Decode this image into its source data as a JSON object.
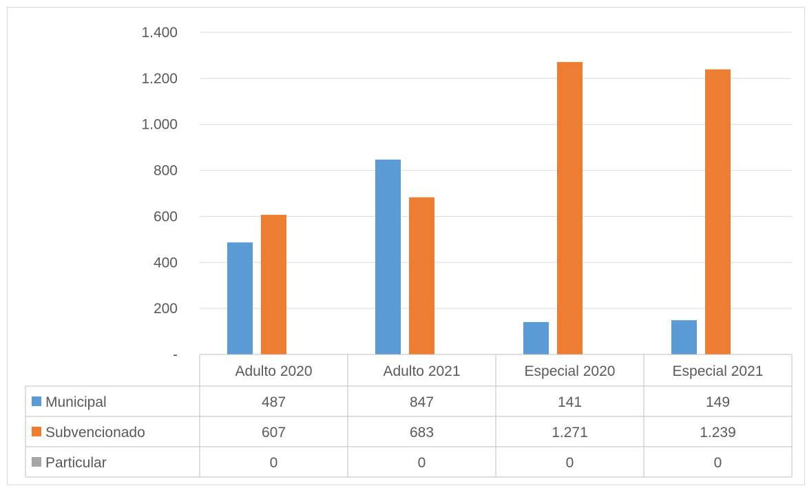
{
  "chart_data": {
    "type": "bar",
    "categories": [
      "Adulto 2020",
      "Adulto 2021",
      "Especial 2020",
      "Especial 2021"
    ],
    "series": [
      {
        "name": "Municipal",
        "values": [
          487,
          847,
          141,
          149
        ],
        "labels": [
          "487",
          "847",
          "141",
          "149"
        ],
        "color": "#5b9bd5"
      },
      {
        "name": "Subvencionado",
        "values": [
          607,
          683,
          1271,
          1239
        ],
        "labels": [
          "607",
          "683",
          "1.271",
          "1.239"
        ],
        "color": "#ed7d31"
      },
      {
        "name": "Particular",
        "values": [
          0,
          0,
          0,
          0
        ],
        "labels": [
          "0",
          "0",
          "0",
          "0"
        ],
        "color": "#a5a5a5"
      }
    ],
    "y_ticks": [
      0,
      200,
      400,
      600,
      800,
      1000,
      1200,
      1400
    ],
    "y_tick_labels": [
      "-",
      "200",
      "400",
      "600",
      "800",
      "1.000",
      "1.200",
      "1.400"
    ],
    "ylim": [
      0,
      1400
    ],
    "grid": true,
    "legend": "data-table",
    "title": "",
    "xlabel": "",
    "ylabel": ""
  }
}
